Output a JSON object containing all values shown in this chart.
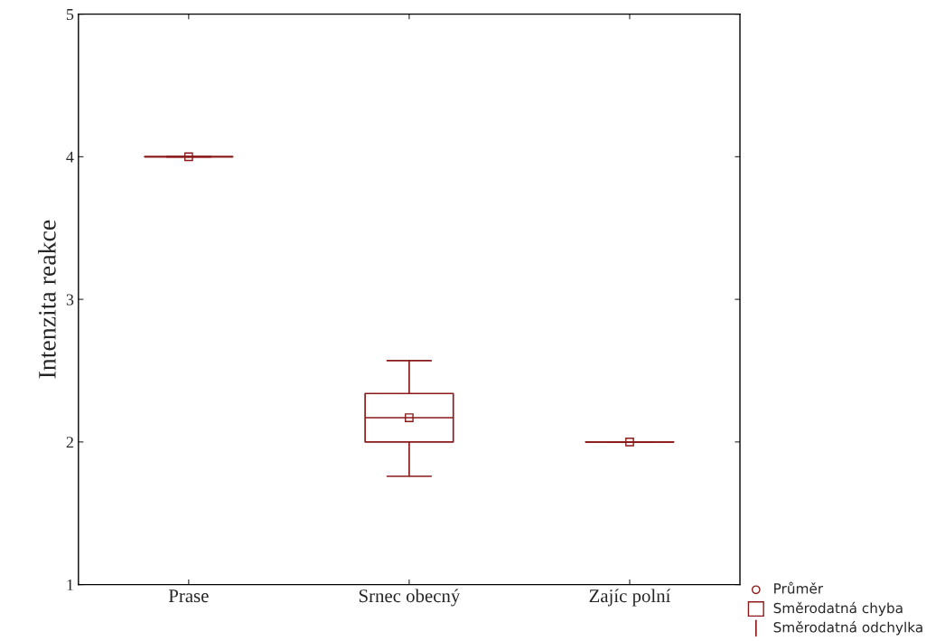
{
  "chart_data": {
    "type": "box",
    "ylabel": "Intenzita reakce",
    "categories": [
      "Prase",
      "Srnec obecný",
      "Zajíc polní"
    ],
    "series": [
      {
        "color": "#8b1a1a",
        "boxes": [
          {
            "low": 4.0,
            "q1": 4.0,
            "median": 4.0,
            "q3": 4.0,
            "high": 4.0,
            "mean": 4.0
          },
          {
            "low": 1.76,
            "q1": 2.0,
            "median": 2.17,
            "q3": 2.34,
            "high": 2.57,
            "mean": 2.17
          },
          {
            "low": 2.0,
            "q1": 2.0,
            "median": 2.0,
            "q3": 2.0,
            "high": 2.0,
            "mean": 2.0
          }
        ]
      }
    ],
    "ylim": [
      1,
      5
    ],
    "yticks": [
      1,
      2,
      3,
      4,
      5
    ],
    "grid": false,
    "marker": "square",
    "annotations": [
      "Průměr",
      "Směrodatná chyba",
      "Směrodatná odchylka"
    ]
  }
}
